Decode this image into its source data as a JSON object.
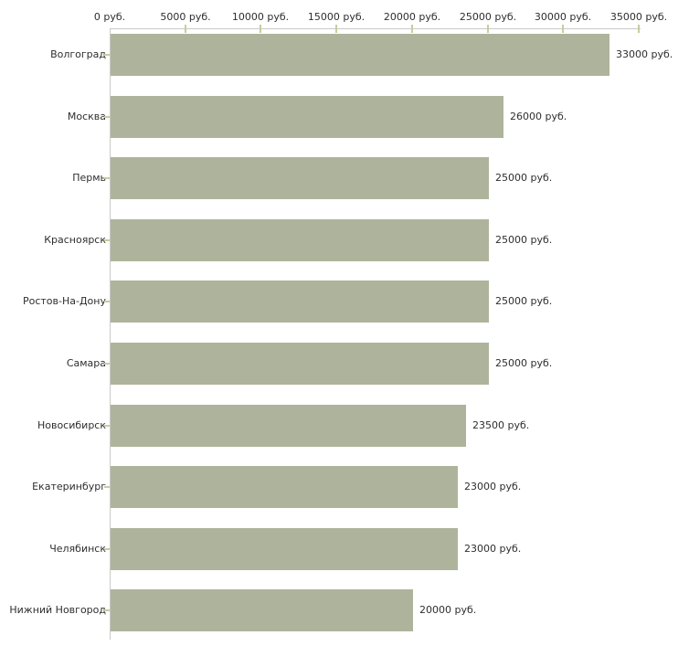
{
  "chart_data": {
    "type": "bar",
    "orientation": "horizontal",
    "title": "",
    "categories": [
      "Волгоград",
      "Москва",
      "Пермь",
      "Красноярск",
      "Ростов-На-Дону",
      "Самара",
      "Новосибирск",
      "Екатеринбург",
      "Челябинск",
      "Нижний Новгород"
    ],
    "values": [
      33000,
      26000,
      25000,
      25000,
      25000,
      25000,
      23500,
      23000,
      23000,
      20000
    ],
    "value_labels": [
      "33000 руб.",
      "26000 руб.",
      "25000 руб.",
      "25000 руб.",
      "25000 руб.",
      "25000 руб.",
      "23500 руб.",
      "23000 руб.",
      "23000 руб.",
      "20000 руб."
    ],
    "x_axis": {
      "position": "top",
      "unit": "руб.",
      "xlim": [
        0,
        35000
      ],
      "ticks": [
        0,
        5000,
        10000,
        15000,
        20000,
        25000,
        30000,
        35000
      ],
      "tick_labels": [
        "0 руб.",
        "5000 руб.",
        "10000 руб.",
        "15000 руб.",
        "20000 руб.",
        "25000 руб.",
        "30000 руб.",
        "35000 руб."
      ]
    },
    "legend": "none",
    "grid": "off",
    "colors": {
      "bar": "#aeb49b",
      "axis_line": "#c9c9c9",
      "tick_mark": "#cbcb9e",
      "text": "#2e2e2e",
      "background": "#ffffff"
    }
  }
}
